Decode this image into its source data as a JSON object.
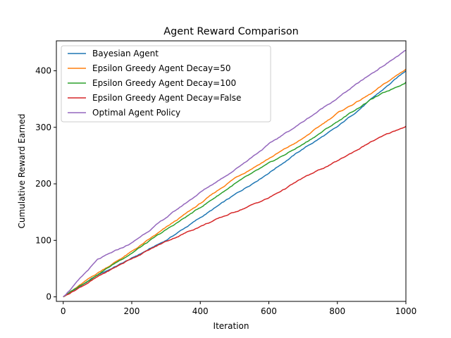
{
  "chart_data": {
    "type": "line",
    "title": "Agent Reward Comparison",
    "xlabel": "Iteration",
    "ylabel": "Cumulative Reward Earned",
    "xlim": [
      -20,
      1000
    ],
    "ylim": [
      -8,
      453
    ],
    "xticks": [
      0,
      200,
      400,
      600,
      800,
      1000
    ],
    "yticks": [
      0,
      100,
      200,
      300,
      400
    ],
    "grid": false,
    "legend": "top-left",
    "x": [
      0,
      100,
      200,
      300,
      400,
      500,
      600,
      700,
      800,
      900,
      1000
    ],
    "series": [
      {
        "name": "Bayesian Agent",
        "color": "#1f77b4",
        "values": [
          0,
          38,
          68,
          100,
          140,
          180,
          220,
          262,
          300,
          350,
          400
        ]
      },
      {
        "name": "Epsilon Greedy Agent Decay=50",
        "color": "#ff7f0e",
        "values": [
          0,
          42,
          80,
          122,
          165,
          210,
          245,
          280,
          325,
          360,
          403
        ]
      },
      {
        "name": "Epsilon Greedy Agent Decay=100",
        "color": "#2ca02c",
        "values": [
          0,
          40,
          78,
          118,
          158,
          200,
          235,
          270,
          310,
          350,
          380
        ]
      },
      {
        "name": "Epsilon Greedy Agent Decay=False",
        "color": "#d62728",
        "values": [
          0,
          35,
          68,
          98,
          125,
          150,
          175,
          210,
          240,
          275,
          302
        ]
      },
      {
        "name": "Optimal Agent Policy",
        "color": "#9467bd",
        "values": [
          0,
          65,
          95,
          140,
          185,
          225,
          270,
          310,
          352,
          395,
          436
        ]
      }
    ]
  }
}
